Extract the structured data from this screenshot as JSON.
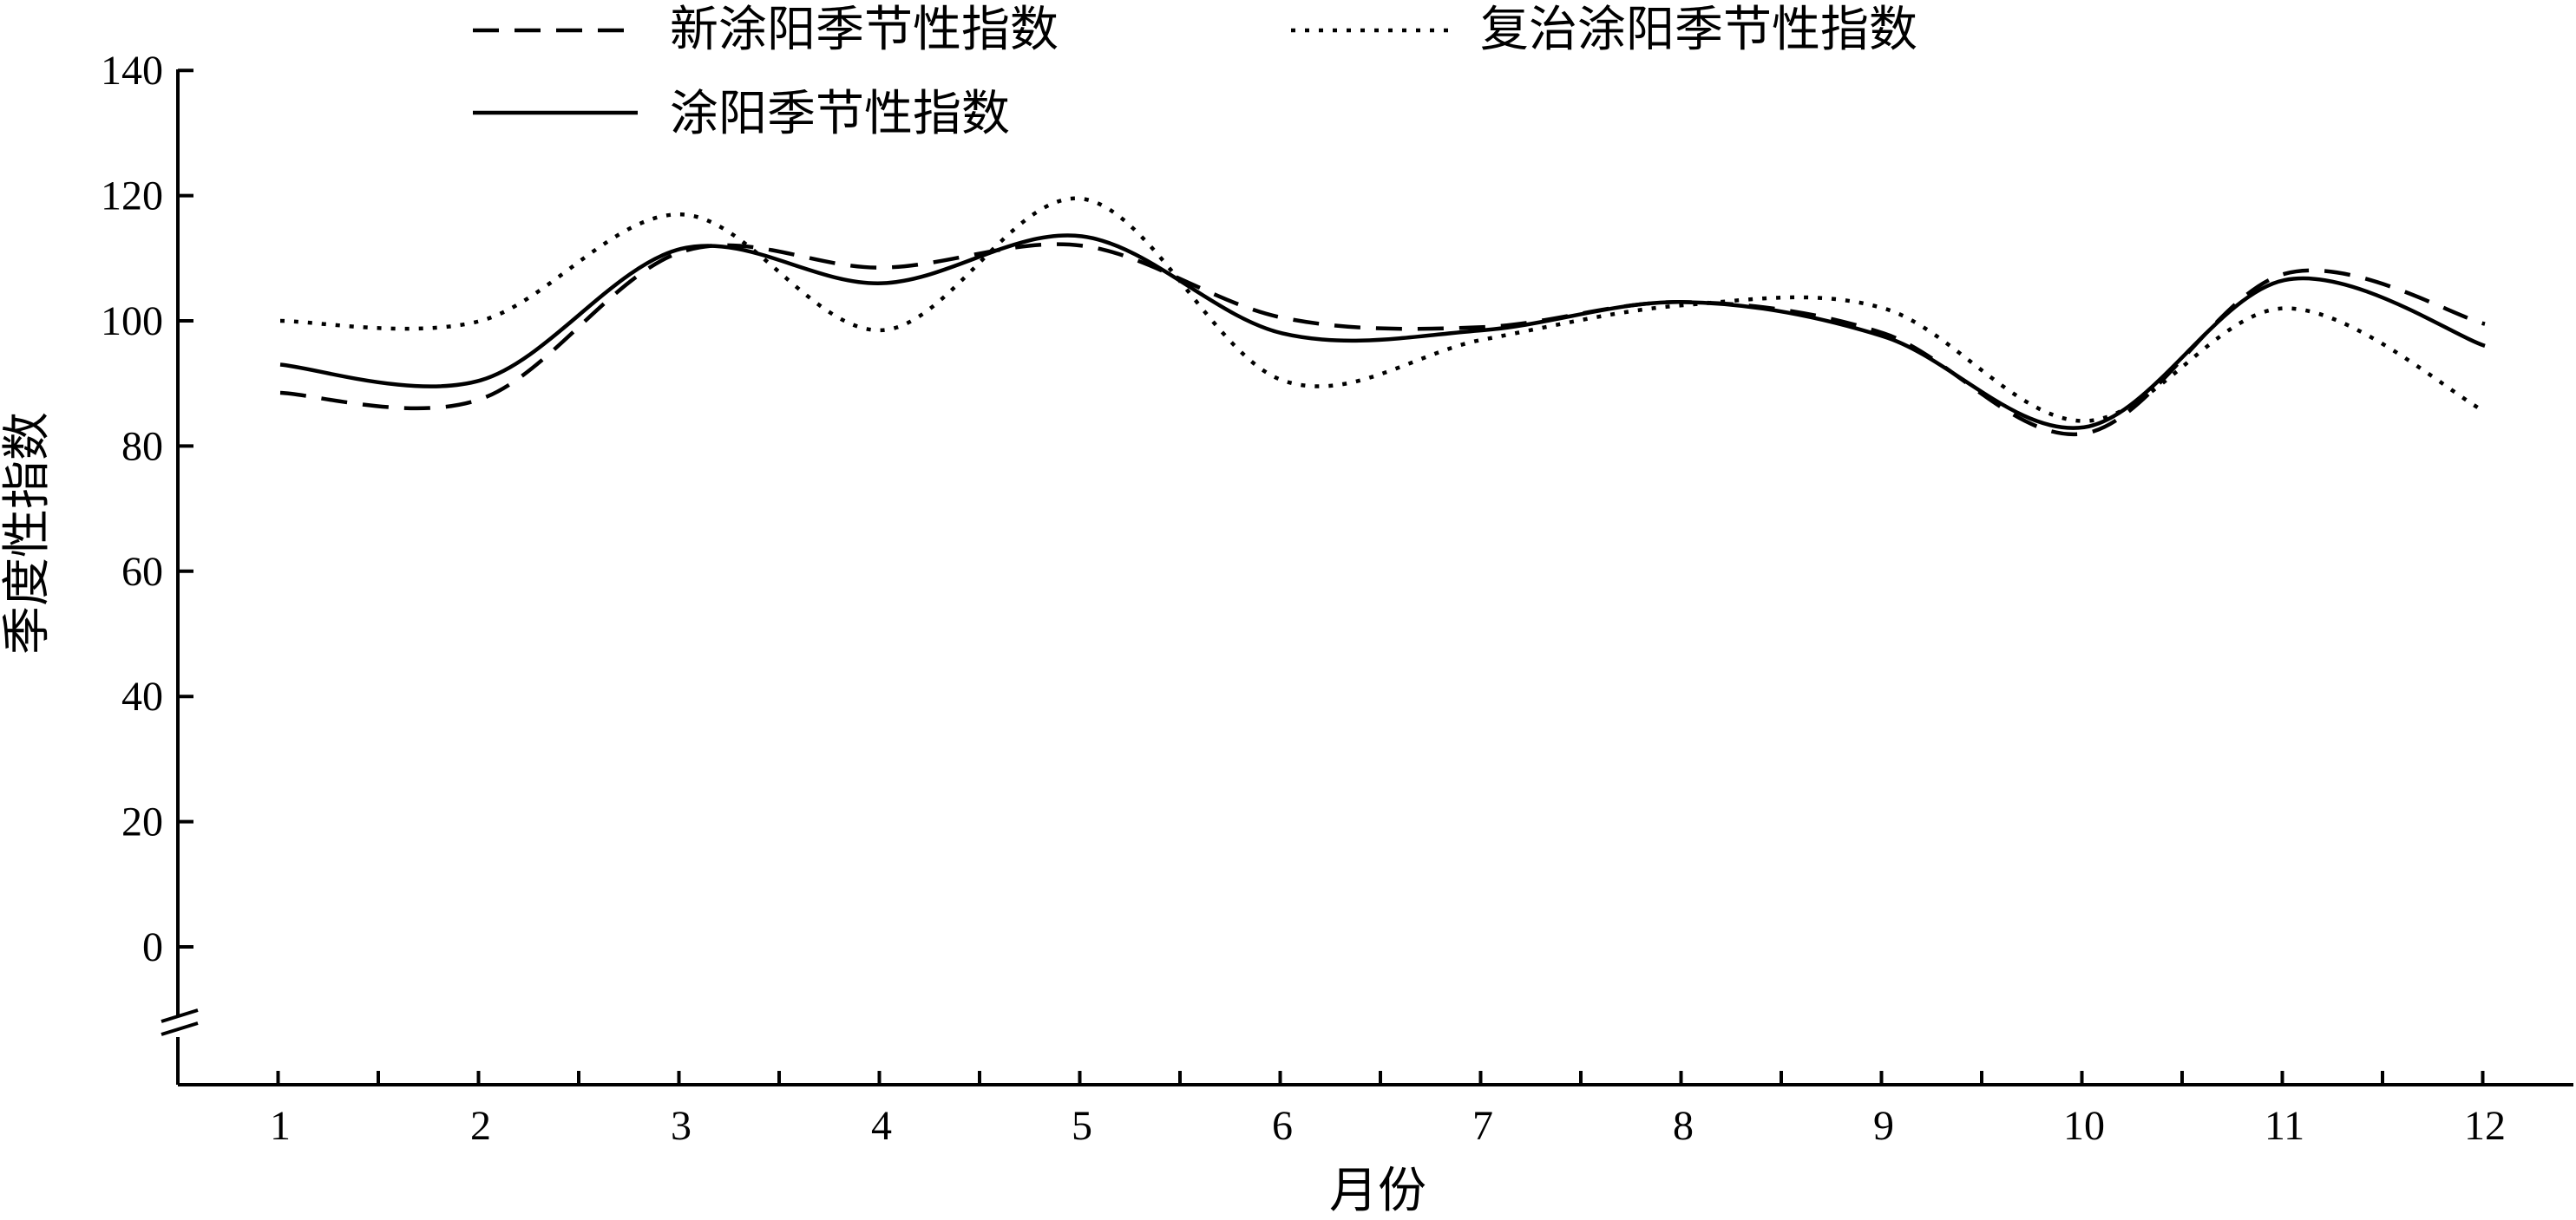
{
  "chart_data": {
    "type": "line",
    "xlabel": "月份",
    "ylabel": "季度性指数",
    "categories": [
      "1",
      "2",
      "3",
      "4",
      "5",
      "6",
      "7",
      "8",
      "9",
      "10",
      "11",
      "12"
    ],
    "yticks": [
      "0",
      "20",
      "40",
      "60",
      "80",
      "100",
      "120",
      "140"
    ],
    "ylim": [
      -22,
      140
    ],
    "axis_break": true,
    "grid": false,
    "legend_position": "top",
    "series": [
      {
        "name": "新涂阳季节性指数",
        "style": "dashed",
        "values": [
          88.5,
          87.5,
          111,
          108.5,
          112,
          100.5,
          99,
          103,
          98,
          82,
          107.5,
          99.5
        ]
      },
      {
        "name": "复治涂阳季节性指数",
        "style": "dotted",
        "values": [
          100,
          100,
          117,
          98.5,
          119.5,
          90.5,
          97,
          102.5,
          102,
          84,
          102,
          85.5
        ]
      },
      {
        "name": "涂阳季节性指数",
        "style": "solid",
        "values": [
          93,
          90.5,
          111.5,
          106,
          113.5,
          98,
          98.5,
          103,
          97.5,
          83,
          106.5,
          96
        ]
      }
    ]
  }
}
